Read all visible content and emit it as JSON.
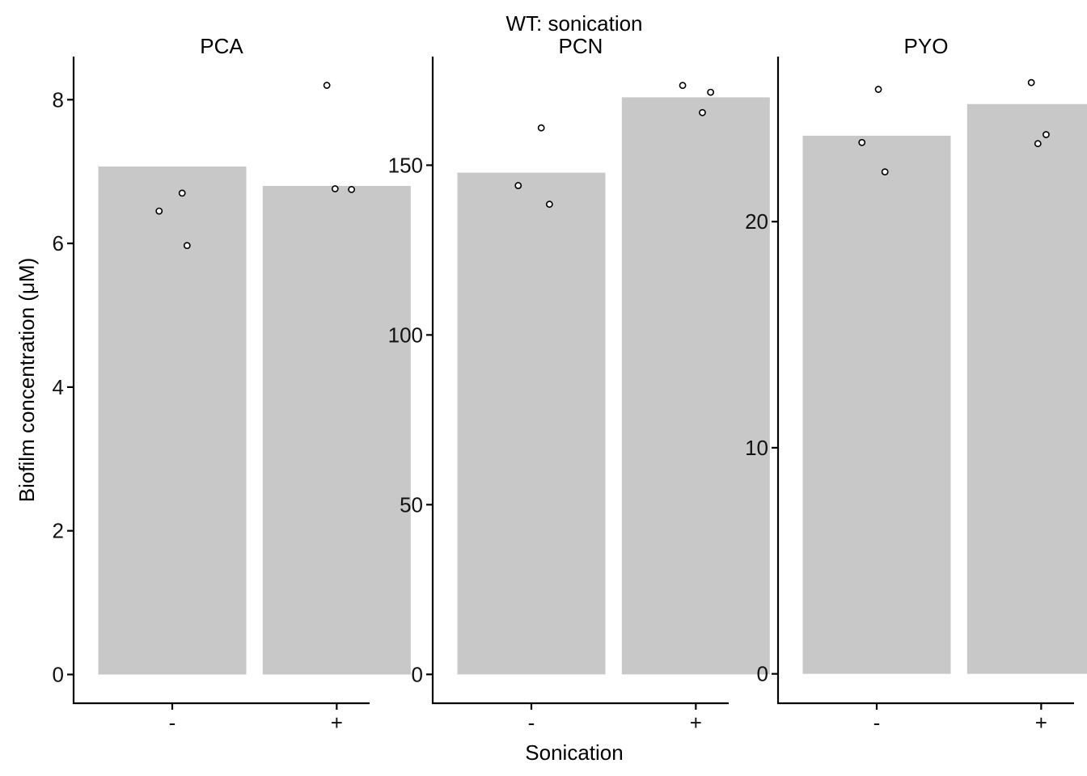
{
  "chart_data": {
    "type": "bar",
    "title": "WT: sonication",
    "xlabel": "Sonication",
    "ylabel": "Biofilm concentration (μM)",
    "grid": false,
    "legend": "none",
    "bar_color": "#c8c8c8",
    "categories": [
      "-",
      "+"
    ],
    "panels": [
      {
        "name": "PCA",
        "ylim": [
          -0.4,
          8.6
        ],
        "yticks": [
          0,
          2,
          4,
          6,
          8
        ],
        "bars": [
          7.07,
          6.8
        ],
        "points": [
          {
            "category": "-",
            "jitter": -0.08,
            "value": 6.45
          },
          {
            "category": "-",
            "jitter": 0.06,
            "value": 6.7
          },
          {
            "category": "-",
            "jitter": 0.09,
            "value": 5.97
          },
          {
            "category": "+",
            "jitter": -0.06,
            "value": 8.2
          },
          {
            "category": "+",
            "jitter": -0.01,
            "value": 6.76
          },
          {
            "category": "+",
            "jitter": 0.09,
            "value": 6.75
          }
        ]
      },
      {
        "name": "PCN",
        "ylim": [
          -8.5,
          182
        ],
        "yticks": [
          0,
          50,
          100,
          150
        ],
        "bars": [
          147.8,
          170
        ],
        "points": [
          {
            "category": "-",
            "jitter": -0.08,
            "value": 144
          },
          {
            "category": "-",
            "jitter": 0.06,
            "value": 161
          },
          {
            "category": "-",
            "jitter": 0.11,
            "value": 138.5
          },
          {
            "category": "+",
            "jitter": -0.08,
            "value": 173.5
          },
          {
            "category": "+",
            "jitter": 0.04,
            "value": 165.5
          },
          {
            "category": "+",
            "jitter": 0.09,
            "value": 171.5
          }
        ]
      },
      {
        "name": "PYO",
        "ylim": [
          -1.3,
          27.3
        ],
        "yticks": [
          0,
          10,
          20
        ],
        "bars": [
          23.8,
          25.2
        ],
        "points": [
          {
            "category": "-",
            "jitter": -0.09,
            "value": 23.5
          },
          {
            "category": "-",
            "jitter": 0.01,
            "value": 25.85
          },
          {
            "category": "-",
            "jitter": 0.05,
            "value": 22.2
          },
          {
            "category": "+",
            "jitter": -0.06,
            "value": 26.15
          },
          {
            "category": "+",
            "jitter": -0.02,
            "value": 23.45
          },
          {
            "category": "+",
            "jitter": 0.03,
            "value": 23.85
          }
        ]
      }
    ]
  }
}
